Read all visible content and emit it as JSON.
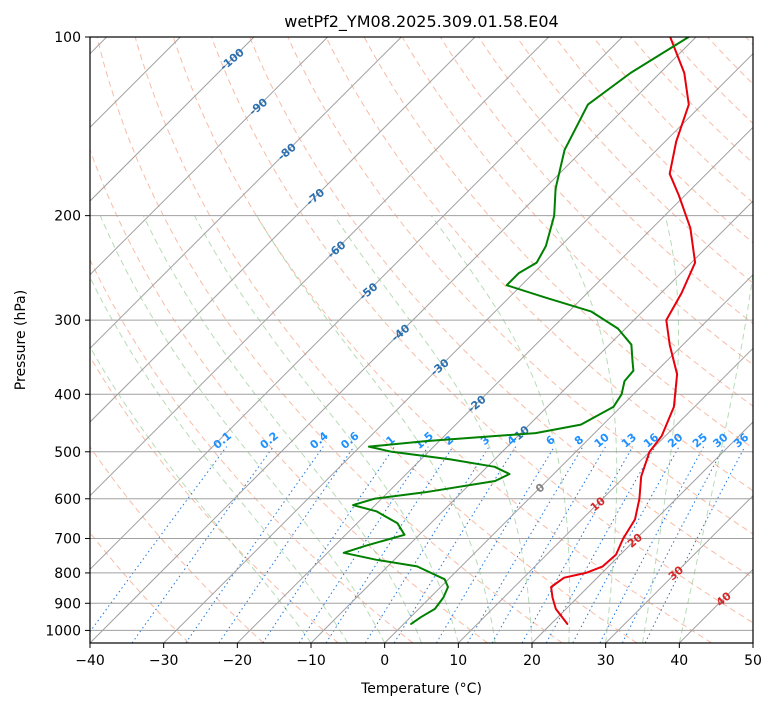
{
  "chart_data": {
    "type": "line",
    "chart_kind": "skew-t log-p diagram",
    "title": "wetPf2_YM08.2025.309.01.58.E04",
    "xlabel": "Temperature (°C)",
    "ylabel": "Pressure (hPa)",
    "xlim": [
      -40,
      50
    ],
    "ylim": [
      1050,
      100
    ],
    "y_scale": "log",
    "x_ticks": [
      -40,
      -30,
      -20,
      -10,
      0,
      10,
      20,
      30,
      40,
      50
    ],
    "y_ticks": [
      100,
      200,
      300,
      400,
      500,
      600,
      700,
      800,
      900,
      1000
    ],
    "grid": true,
    "legend": "none",
    "colors": {
      "temperature": "#e8000b",
      "dewpoint": "#008000",
      "isotherm": "#a0a0a0",
      "isobar": "#a0a0a0",
      "dry_adiabat": "#f5a080",
      "moist_adiabat": "#90c890",
      "mixing_ratio": "#1e78dc",
      "isotherm_label": "#2a6fb0",
      "mixing_ratio_label": "#1e90ff",
      "isotherm_label_warm": "#d62728",
      "isotherm_label_zero": "#808080"
    },
    "series": [
      {
        "role": "temperature",
        "points": [
          {
            "p": 975,
            "t": 22.2
          },
          {
            "p": 920,
            "t": 18.6
          },
          {
            "p": 880,
            "t": 16.6
          },
          {
            "p": 845,
            "t": 15.0
          },
          {
            "p": 815,
            "t": 15.5
          },
          {
            "p": 800,
            "t": 17.8
          },
          {
            "p": 780,
            "t": 19.2
          },
          {
            "p": 745,
            "t": 19.4
          },
          {
            "p": 700,
            "t": 18.2
          },
          {
            "p": 650,
            "t": 17.2
          },
          {
            "p": 600,
            "t": 15.0
          },
          {
            "p": 550,
            "t": 12.2
          },
          {
            "p": 500,
            "t": 10.0
          },
          {
            "p": 470,
            "t": 9.5
          },
          {
            "p": 420,
            "t": 7.2
          },
          {
            "p": 370,
            "t": 3.2
          },
          {
            "p": 330,
            "t": -1.8
          },
          {
            "p": 300,
            "t": -5.6
          },
          {
            "p": 270,
            "t": -7.2
          },
          {
            "p": 240,
            "t": -9.5
          },
          {
            "p": 210,
            "t": -14.8
          },
          {
            "p": 185,
            "t": -20.8
          },
          {
            "p": 170,
            "t": -25.0
          },
          {
            "p": 150,
            "t": -28.5
          },
          {
            "p": 130,
            "t": -31.8
          },
          {
            "p": 115,
            "t": -36.7
          },
          {
            "p": 100,
            "t": -43.5
          }
        ]
      },
      {
        "role": "dewpoint",
        "points": [
          {
            "p": 975,
            "t": 1.0
          },
          {
            "p": 950,
            "t": 1.4
          },
          {
            "p": 920,
            "t": 2.2
          },
          {
            "p": 880,
            "t": 1.8
          },
          {
            "p": 845,
            "t": 1.0
          },
          {
            "p": 820,
            "t": -0.5
          },
          {
            "p": 780,
            "t": -6.0
          },
          {
            "p": 760,
            "t": -12.5
          },
          {
            "p": 740,
            "t": -17.8
          },
          {
            "p": 720,
            "t": -15.8
          },
          {
            "p": 690,
            "t": -12.0
          },
          {
            "p": 660,
            "t": -14.5
          },
          {
            "p": 630,
            "t": -19.0
          },
          {
            "p": 615,
            "t": -23.0
          },
          {
            "p": 600,
            "t": -21.0
          },
          {
            "p": 585,
            "t": -15.0
          },
          {
            "p": 560,
            "t": -7.0
          },
          {
            "p": 545,
            "t": -6.0
          },
          {
            "p": 530,
            "t": -9.0
          },
          {
            "p": 515,
            "t": -16.0
          },
          {
            "p": 500,
            "t": -25.0
          },
          {
            "p": 490,
            "t": -28.8
          },
          {
            "p": 480,
            "t": -22.0
          },
          {
            "p": 465,
            "t": -8.0
          },
          {
            "p": 450,
            "t": -3.0
          },
          {
            "p": 420,
            "t": -1.0
          },
          {
            "p": 400,
            "t": -1.6
          },
          {
            "p": 380,
            "t": -3.0
          },
          {
            "p": 365,
            "t": -3.2
          },
          {
            "p": 350,
            "t": -4.8
          },
          {
            "p": 330,
            "t": -7.0
          },
          {
            "p": 310,
            "t": -11.0
          },
          {
            "p": 290,
            "t": -17.0
          },
          {
            "p": 275,
            "t": -25.0
          },
          {
            "p": 262,
            "t": -32.0
          },
          {
            "p": 250,
            "t": -32.0
          },
          {
            "p": 240,
            "t": -31.0
          },
          {
            "p": 225,
            "t": -32.0
          },
          {
            "p": 200,
            "t": -35.0
          },
          {
            "p": 180,
            "t": -38.5
          },
          {
            "p": 155,
            "t": -42.5
          },
          {
            "p": 130,
            "t": -45.5
          },
          {
            "p": 115,
            "t": -44.0
          },
          {
            "p": 100,
            "t": -41.0
          }
        ]
      }
    ],
    "isotherm_labels": [
      -100,
      -90,
      -80,
      -70,
      -60,
      -50,
      -40,
      -30,
      -20,
      -10,
      0,
      10,
      20,
      30,
      40
    ],
    "mixing_ratio_labels": [
      0.1,
      0.2,
      0.4,
      0.6,
      1,
      1.5,
      2,
      3,
      4,
      6,
      8,
      10,
      13,
      16,
      20,
      25,
      30,
      36
    ]
  }
}
